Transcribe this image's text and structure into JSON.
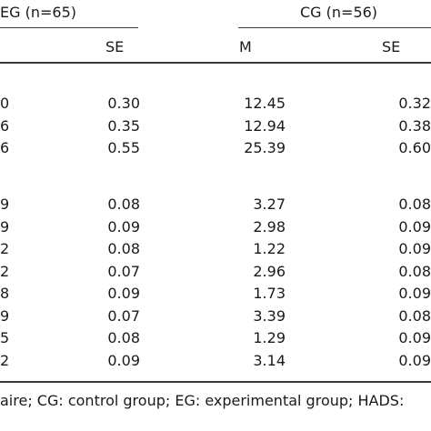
{
  "header": {
    "eg_group": "EG (n=65)",
    "cg_group": "CG (n=56)",
    "eg_se": "SE",
    "cg_m": "M",
    "cg_se": "SE"
  },
  "section1": [
    {
      "eg_m_tail": "0",
      "eg_se": "0.30",
      "cg_m": "12.45",
      "cg_se": "0.32"
    },
    {
      "eg_m_tail": "6",
      "eg_se": "0.35",
      "cg_m": "12.94",
      "cg_se": "0.38"
    },
    {
      "eg_m_tail": "6",
      "eg_se": "0.55",
      "cg_m": "25.39",
      "cg_se": "0.60"
    }
  ],
  "section2": [
    {
      "eg_m_tail": "9",
      "eg_se": "0.08",
      "cg_m": "3.27",
      "cg_se": "0.08"
    },
    {
      "eg_m_tail": "9",
      "eg_se": "0.09",
      "cg_m": "2.98",
      "cg_se": "0.09"
    },
    {
      "eg_m_tail": "2",
      "eg_se": "0.08",
      "cg_m": "1.22",
      "cg_se": "0.09"
    },
    {
      "eg_m_tail": "2",
      "eg_se": "0.07",
      "cg_m": "2.96",
      "cg_se": "0.08"
    },
    {
      "eg_m_tail": "8",
      "eg_se": "0.09",
      "cg_m": "1.73",
      "cg_se": "0.09"
    },
    {
      "eg_m_tail": "9",
      "eg_se": "0.07",
      "cg_m": "3.39",
      "cg_se": "0.08"
    },
    {
      "eg_m_tail": "5",
      "eg_se": "0.08",
      "cg_m": "1.29",
      "cg_se": "0.09"
    },
    {
      "eg_m_tail": "2",
      "eg_se": "0.09",
      "cg_m": "3.14",
      "cg_se": "0.09"
    }
  ],
  "footnote": "aire; CG: control group; EG: experimental group; HADS:"
}
